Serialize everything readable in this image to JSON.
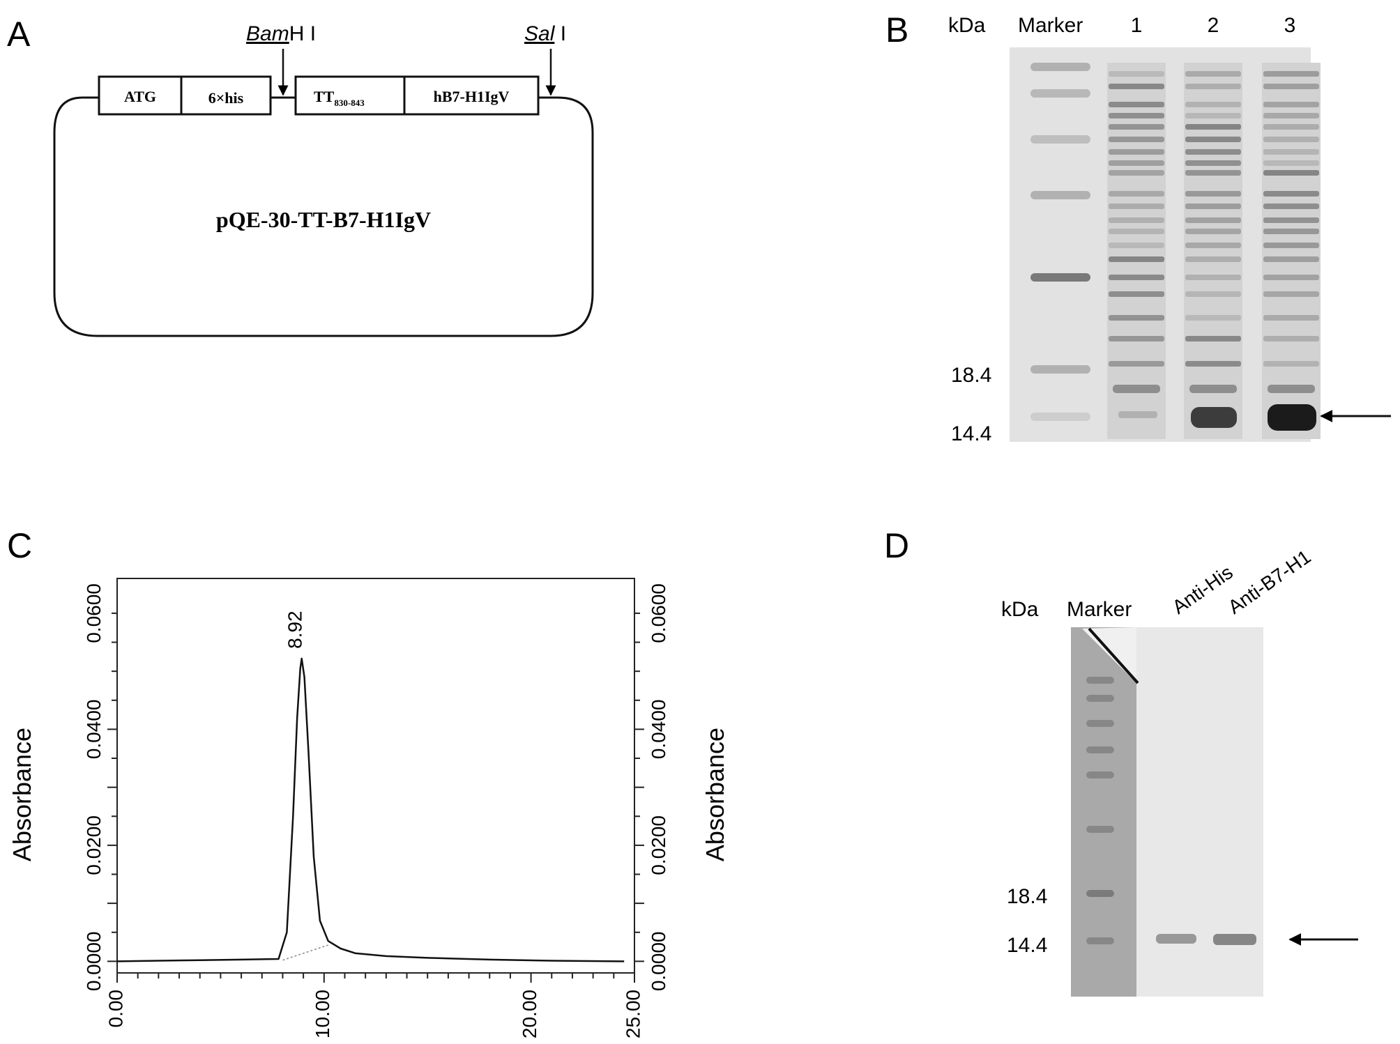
{
  "panel_a": {
    "label": "A",
    "bamhi_label": "BamH I",
    "bamhi_italic": "Bam",
    "bamhi_rest": "H I",
    "sali_label": "Sal I",
    "sali_italic": "Sal",
    "sali_rest": " I",
    "box_atg": "ATG",
    "box_his": "6×his",
    "box_tt": "TT",
    "box_tt_sub": "830-843",
    "box_hb7": "hB7-H1IgV",
    "plasmid_name": "pQE-30-TT-B7-H1IgV"
  },
  "panel_b": {
    "label": "B",
    "kda_label": "kDa",
    "marker_label": "Marker",
    "lanes": [
      "1",
      "2",
      "3"
    ],
    "mw_labels": [
      "18.4",
      "14.4"
    ]
  },
  "panel_c": {
    "label": "C",
    "ylabel_left": "Absorbance",
    "ylabel_right": "Absorbance",
    "peak_label": "8.92"
  },
  "panel_d": {
    "label": "D",
    "kda_label": "kDa",
    "marker_label": "Marker",
    "lanes": [
      "Anti-His",
      "Anti-B7-H1"
    ],
    "mw_labels": [
      "18.4",
      "14.4"
    ]
  },
  "chart_data": {
    "type": "line",
    "title": "",
    "xlabel": "",
    "ylabel": "Absorbance",
    "xlim": [
      0,
      25
    ],
    "ylim": [
      -0.002,
      0.066
    ],
    "x_ticks": [
      "0.00",
      "10.00",
      "20.00",
      "25.00"
    ],
    "y_ticks": [
      "0.0000",
      "0.0200",
      "0.0400",
      "0.0600"
    ],
    "series": [
      {
        "x": [
          0,
          2,
          4,
          6,
          7.8,
          8.2,
          8.5,
          8.7,
          8.85,
          8.92,
          9.05,
          9.25,
          9.5,
          9.8,
          10.2,
          10.8,
          11.5,
          13,
          15,
          18,
          21,
          24.5
        ],
        "values": [
          0.0,
          0.0001,
          0.0002,
          0.0003,
          0.0004,
          0.005,
          0.025,
          0.042,
          0.0505,
          0.0522,
          0.049,
          0.036,
          0.018,
          0.007,
          0.0035,
          0.0022,
          0.0014,
          0.0009,
          0.0006,
          0.0003,
          0.0001,
          0.0
        ]
      }
    ],
    "annotations": [
      {
        "text": "8.92",
        "x": 8.92,
        "y": 0.0522
      }
    ]
  }
}
